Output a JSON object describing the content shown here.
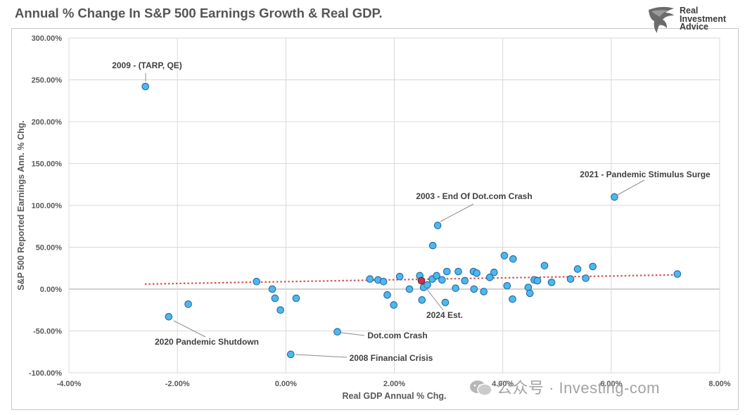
{
  "header": {
    "title": "Annual % Change In S&P 500 Earnings Growth & Real GDP.",
    "logo_text": [
      "Real",
      "Investment",
      "Advice"
    ]
  },
  "watermark": {
    "text": "公众号 · Investing-com"
  },
  "colors": {
    "point_fill": "#4db8ec",
    "point_stroke": "#1f5f9f",
    "highlight_fill": "#c0354a",
    "trendline": "#d9534f",
    "grid": "#d9d9d9",
    "axis_text": "#595959"
  },
  "chart_data": {
    "type": "scatter",
    "title": "Annual % Change In S&P 500 Earnings Growth & Real GDP.",
    "xlabel": "Real GDP Annual % Chg.",
    "ylabel": "S&P 500 Reported Earnings Ann. % Chg.",
    "xlim": [
      -4,
      8
    ],
    "ylim": [
      -100,
      300
    ],
    "x_ticks": [
      -4,
      -2,
      0,
      2,
      4,
      6,
      8
    ],
    "y_ticks": [
      -100,
      -50,
      0,
      50,
      100,
      150,
      200,
      250,
      300
    ],
    "x_tick_labels": [
      "-4.00%",
      "-2.00%",
      "0.00%",
      "2.00%",
      "4.00%",
      "6.00%",
      "8.00%"
    ],
    "y_tick_labels": [
      "-100.00%",
      "-50.00%",
      "0.00%",
      "50.00%",
      "100.00%",
      "150.00%",
      "200.00%",
      "250.00%",
      "300.00%"
    ],
    "grid": true,
    "points": [
      [
        -2.59,
        242
      ],
      [
        -2.16,
        -33
      ],
      [
        -1.8,
        -18
      ],
      [
        -0.54,
        9
      ],
      [
        -0.25,
        0
      ],
      [
        -0.2,
        -11
      ],
      [
        -0.1,
        -25
      ],
      [
        0.19,
        -11
      ],
      [
        0.09,
        -78
      ],
      [
        0.95,
        -51
      ],
      [
        1.55,
        12
      ],
      [
        1.7,
        11
      ],
      [
        1.8,
        9
      ],
      [
        1.87,
        -7
      ],
      [
        1.99,
        -19
      ],
      [
        2.1,
        15
      ],
      [
        2.28,
        0
      ],
      [
        2.47,
        16
      ],
      [
        2.51,
        -13
      ],
      [
        2.54,
        2
      ],
      [
        2.61,
        5
      ],
      [
        2.7,
        12
      ],
      [
        2.71,
        52
      ],
      [
        2.78,
        16
      ],
      [
        2.8,
        76
      ],
      [
        2.88,
        11
      ],
      [
        2.94,
        -16
      ],
      [
        2.97,
        21
      ],
      [
        3.13,
        1
      ],
      [
        3.18,
        21
      ],
      [
        3.3,
        10
      ],
      [
        3.46,
        21
      ],
      [
        3.47,
        0
      ],
      [
        3.52,
        19
      ],
      [
        3.65,
        -3
      ],
      [
        3.76,
        14
      ],
      [
        3.84,
        20
      ],
      [
        4.03,
        40
      ],
      [
        4.08,
        4
      ],
      [
        4.19,
        36
      ],
      [
        4.18,
        -12
      ],
      [
        4.47,
        2
      ],
      [
        4.5,
        -5
      ],
      [
        4.58,
        11
      ],
      [
        4.64,
        10
      ],
      [
        4.77,
        28
      ],
      [
        4.9,
        8
      ],
      [
        5.25,
        12
      ],
      [
        5.38,
        24
      ],
      [
        5.53,
        13
      ],
      [
        5.66,
        27
      ],
      [
        6.06,
        110
      ],
      [
        7.22,
        18
      ]
    ],
    "highlight_point": [
      2.5,
      10
    ],
    "trendline": {
      "x": [
        -2.6,
        7.2
      ],
      "y": [
        6,
        17
      ]
    },
    "annotations": [
      {
        "text": "2009 - (TARP, QE)",
        "x": -2.59,
        "y": 242
      },
      {
        "text": "2021 - Pandemic Stimulus Surge",
        "x": 6.06,
        "y": 110
      },
      {
        "text": "2003 - End Of Dot.com Crash",
        "x": 2.8,
        "y": 76
      },
      {
        "text": "2024 Est.",
        "x": 2.5,
        "y": 10
      },
      {
        "text": "2020 Pandemic Shutdown",
        "x": -2.16,
        "y": -33
      },
      {
        "text": "Dot.com Crash",
        "x": 0.95,
        "y": -51
      },
      {
        "text": "2008 Financial Crisis",
        "x": 0.09,
        "y": -78
      }
    ]
  }
}
